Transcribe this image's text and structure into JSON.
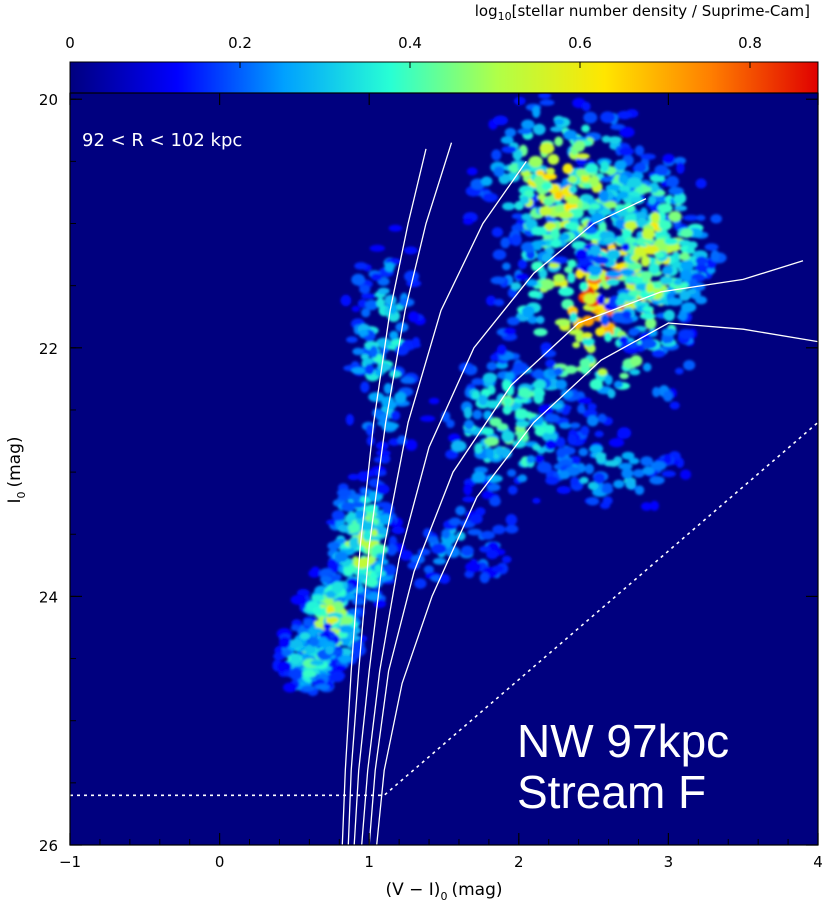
{
  "chart_data": {
    "type": "heatmap",
    "title": "",
    "colorbar": {
      "label_prefix": "log",
      "label_sub": "10",
      "label_rest": "[stellar number density / Suprime-Cam]",
      "range": [
        0,
        0.88
      ],
      "ticks": [
        "0",
        "0.2",
        "0.4",
        "0.6",
        "0.8"
      ],
      "tick_values": [
        0,
        0.2,
        0.4,
        0.6,
        0.8
      ],
      "colormap": [
        "#00007f",
        "#0000ff",
        "#00a0ff",
        "#28ffd4",
        "#b0ff48",
        "#ffe600",
        "#ff7e00",
        "#e00000"
      ]
    },
    "xlabel_main": "(V − I)",
    "xlabel_sub": "0",
    "xlabel_unit": "(mag)",
    "ylabel_main": "I",
    "ylabel_sub": "0",
    "ylabel_unit": "(mag)",
    "xlim": [
      -1,
      4
    ],
    "ylim": [
      26,
      19.95
    ],
    "x_ticks": [
      "−1",
      "0",
      "1",
      "2",
      "3",
      "4"
    ],
    "x_tick_values": [
      -1,
      0,
      1,
      2,
      3,
      4
    ],
    "y_ticks": [
      "20",
      "22",
      "24",
      "26"
    ],
    "y_tick_values": [
      20,
      22,
      24,
      26
    ],
    "background_color": "#00007f",
    "annotations": {
      "radius_range": "92 < R < 102 kpc",
      "field_line1": "NW 97kpc",
      "field_line2": "Stream F"
    },
    "density_clumps": [
      {
        "x": 2.55,
        "y": 21.6,
        "sx": 0.55,
        "sy": 0.85,
        "peak": 0.72
      },
      {
        "x": 2.3,
        "y": 20.7,
        "sx": 0.5,
        "sy": 0.6,
        "peak": 0.6
      },
      {
        "x": 2.9,
        "y": 21.2,
        "sx": 0.4,
        "sy": 0.7,
        "peak": 0.55
      },
      {
        "x": 1.95,
        "y": 22.6,
        "sx": 0.45,
        "sy": 0.6,
        "peak": 0.45
      },
      {
        "x": 1.1,
        "y": 22.0,
        "sx": 0.25,
        "sy": 1.0,
        "peak": 0.35
      },
      {
        "x": 0.95,
        "y": 23.6,
        "sx": 0.2,
        "sy": 0.5,
        "peak": 0.5
      },
      {
        "x": 0.75,
        "y": 24.2,
        "sx": 0.18,
        "sy": 0.35,
        "peak": 0.55
      },
      {
        "x": 0.6,
        "y": 24.5,
        "sx": 0.2,
        "sy": 0.3,
        "peak": 0.4
      },
      {
        "x": 1.6,
        "y": 23.6,
        "sx": 0.5,
        "sy": 0.5,
        "peak": 0.25
      },
      {
        "x": 2.6,
        "y": 23.0,
        "sx": 0.5,
        "sy": 0.35,
        "peak": 0.3
      }
    ],
    "isochrones": [
      {
        "x": [
          0.82,
          0.84,
          0.88,
          0.94,
          1.03,
          1.14,
          1.26,
          1.38
        ],
        "y": [
          26.0,
          25.4,
          24.6,
          23.6,
          22.6,
          21.7,
          21.0,
          20.4
        ]
      },
      {
        "x": [
          0.86,
          0.88,
          0.93,
          1.0,
          1.11,
          1.24,
          1.38,
          1.55
        ],
        "y": [
          26.0,
          25.4,
          24.6,
          23.6,
          22.6,
          21.7,
          21.0,
          20.35
        ]
      },
      {
        "x": [
          0.9,
          0.93,
          1.0,
          1.1,
          1.26,
          1.48,
          1.76,
          2.05
        ],
        "y": [
          26.0,
          25.4,
          24.6,
          23.6,
          22.6,
          21.7,
          21.0,
          20.5
        ]
      },
      {
        "x": [
          0.95,
          0.99,
          1.07,
          1.2,
          1.4,
          1.7,
          2.1,
          2.5,
          2.85
        ],
        "y": [
          26.0,
          25.4,
          24.6,
          23.7,
          22.8,
          22.0,
          21.4,
          21.0,
          20.8
        ]
      },
      {
        "x": [
          1.0,
          1.04,
          1.13,
          1.3,
          1.56,
          1.95,
          2.4,
          2.95,
          3.5,
          3.9
        ],
        "y": [
          26.0,
          25.4,
          24.6,
          23.8,
          23.0,
          22.3,
          21.8,
          21.55,
          21.45,
          21.3
        ]
      },
      {
        "x": [
          1.05,
          1.1,
          1.22,
          1.42,
          1.72,
          2.1,
          2.55,
          3.0,
          3.5,
          4.0
        ],
        "y": [
          26.0,
          25.4,
          24.7,
          24.0,
          23.2,
          22.6,
          22.1,
          21.8,
          21.85,
          21.95
        ]
      }
    ],
    "completeness_limit": {
      "x": [
        -1.0,
        0.85,
        1.1,
        4.0
      ],
      "y": [
        25.6,
        25.6,
        25.6,
        22.6
      ]
    }
  }
}
